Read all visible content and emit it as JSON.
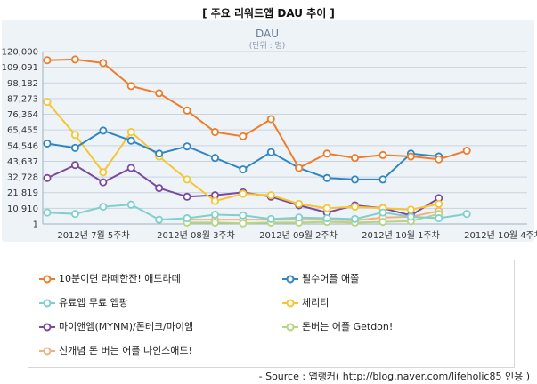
{
  "page_title": "[ 주요 리워드앱 DAU 추이 ]",
  "source": "- Source : 앱랭커( http://blog.naver.com/lifeholic85 인용 )",
  "chart_data": {
    "type": "line",
    "title": "DAU",
    "subtitle": "(단위 : 명)",
    "ylim": [
      0,
      120000
    ],
    "yticks": [
      1,
      10910,
      21819,
      32728,
      43637,
      54546,
      65455,
      76364,
      87273,
      98182,
      109091,
      120000
    ],
    "ytick_labels": [
      "1",
      "10,910",
      "21,819",
      "32,728",
      "43,637",
      "54,546",
      "65,455",
      "76,364",
      "87,273",
      "98,182",
      "109,091",
      "120,000"
    ],
    "xtick_labels": [
      "2012년 7월 5주차",
      "2012년 08월 3주차",
      "2012년 09월 2주차",
      "2012년 10월 1주차",
      "2012년 10월 4주차"
    ],
    "n_points": 18,
    "grid": true,
    "legend_position": "bottom",
    "series": [
      {
        "name": "10분이면 라떼한잔! 애드라떼",
        "color": "#f07b29",
        "values": [
          114000,
          114500,
          112000,
          96000,
          91000,
          79000,
          64000,
          61000,
          73000,
          39000,
          49000,
          46000,
          48000,
          47000,
          45000,
          51000,
          null,
          null
        ]
      },
      {
        "name": "필수어플 애쫄",
        "color": "#2f86c2",
        "values": [
          56000,
          53000,
          65000,
          58000,
          49000,
          54000,
          46000,
          38000,
          50000,
          39000,
          32000,
          31000,
          31000,
          49000,
          47000,
          null,
          null,
          null
        ]
      },
      {
        "name": "유료앱 무료 앱팡",
        "color": "#7fd0cc",
        "values": [
          8000,
          7000,
          12000,
          13500,
          3000,
          4000,
          6500,
          6000,
          3500,
          4500,
          4000,
          3500,
          8000,
          5000,
          4000,
          7000,
          null,
          null
        ]
      },
      {
        "name": "체리티",
        "color": "#f5c533",
        "values": [
          85000,
          62000,
          36000,
          64000,
          47000,
          31000,
          16000,
          21000,
          20000,
          14000,
          11000,
          12000,
          11000,
          10000,
          14000,
          null,
          null,
          null
        ]
      },
      {
        "name": "마이앤엠(MYNM)/폰테크/마이엠",
        "color": "#7a4a9e",
        "values": [
          32000,
          41000,
          29000,
          39000,
          25000,
          19000,
          20000,
          22000,
          19000,
          13000,
          8000,
          13000,
          11000,
          6000,
          18000,
          null,
          null,
          null
        ]
      },
      {
        "name": "돈버는 어플 Getdon!",
        "color": "#b7d47f",
        "values": [
          null,
          null,
          null,
          null,
          null,
          1000,
          1000,
          500,
          1000,
          1000,
          1500,
          1000,
          1500,
          2000,
          7000,
          null,
          null,
          null
        ]
      },
      {
        "name": "신개념 돈 버는 어플 나인스애드!",
        "color": "#f2b183",
        "values": [
          null,
          null,
          null,
          null,
          null,
          3000,
          3000,
          3000,
          3000,
          3000,
          3000,
          2500,
          4500,
          5000,
          9000,
          null,
          null,
          null
        ]
      }
    ]
  }
}
